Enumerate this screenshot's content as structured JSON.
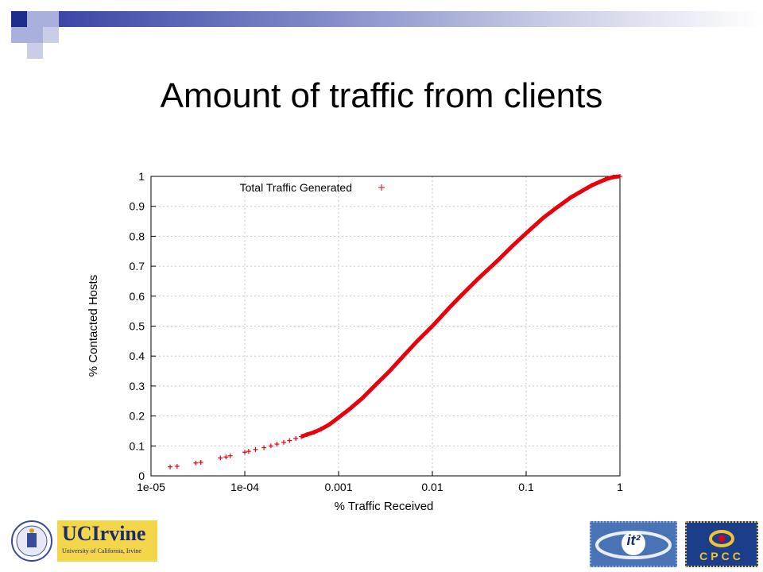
{
  "slide": {
    "title": "Amount of traffic from clients"
  },
  "logos": {
    "ucirvine_wordmark": "UCIrvine",
    "ucirvine_subtitle": "University of California, Irvine",
    "it2_text": "it²",
    "cpcc_text": "CPCC"
  },
  "colors": {
    "header_dark": "#1f2d8a",
    "header_light": "#aab0dc",
    "series": "#e8000b"
  },
  "chart_data": {
    "type": "scatter",
    "title": "",
    "xlabel": "% Traffic Received",
    "ylabel": "% Contacted Hosts",
    "x_scale": "log",
    "xlim": [
      1e-05,
      1
    ],
    "ylim": [
      0,
      1
    ],
    "x_ticks": [
      "1e-05",
      "1e-04",
      "0.001",
      "0.01",
      "0.1",
      "1"
    ],
    "y_ticks": [
      "0",
      "0.1",
      "0.2",
      "0.3",
      "0.4",
      "0.5",
      "0.6",
      "0.7",
      "0.8",
      "0.9",
      "1"
    ],
    "grid": true,
    "legend": "top-left",
    "series": [
      {
        "name": "Total Traffic Generated",
        "marker": "+",
        "points": [
          [
            1.6e-05,
            0.03
          ],
          [
            1.9e-05,
            0.032
          ],
          [
            3e-05,
            0.043
          ],
          [
            3.4e-05,
            0.045
          ],
          [
            5.5e-05,
            0.06
          ],
          [
            6.3e-05,
            0.063
          ],
          [
            7e-05,
            0.067
          ],
          [
            0.0001,
            0.079
          ],
          [
            0.00011,
            0.082
          ],
          [
            0.00013,
            0.088
          ],
          [
            0.00016,
            0.094
          ],
          [
            0.00019,
            0.1
          ],
          [
            0.00022,
            0.106
          ],
          [
            0.00026,
            0.112
          ],
          [
            0.0003,
            0.118
          ],
          [
            0.00035,
            0.125
          ],
          [
            0.0004,
            0.131
          ],
          [
            0.00046,
            0.138
          ],
          [
            0.00055,
            0.146
          ],
          [
            0.00065,
            0.156
          ],
          [
            0.0008,
            0.172
          ],
          [
            0.001,
            0.195
          ],
          [
            0.0013,
            0.222
          ],
          [
            0.0018,
            0.26
          ],
          [
            0.0025,
            0.305
          ],
          [
            0.0035,
            0.35
          ],
          [
            0.005,
            0.403
          ],
          [
            0.007,
            0.452
          ],
          [
            0.01,
            0.5
          ],
          [
            0.015,
            0.56
          ],
          [
            0.02,
            0.6
          ],
          [
            0.03,
            0.655
          ],
          [
            0.05,
            0.72
          ],
          [
            0.07,
            0.765
          ],
          [
            0.1,
            0.81
          ],
          [
            0.15,
            0.86
          ],
          [
            0.2,
            0.89
          ],
          [
            0.3,
            0.93
          ],
          [
            0.5,
            0.97
          ],
          [
            0.7,
            0.99
          ],
          [
            0.85,
            0.998
          ],
          [
            1.0,
            1.0
          ]
        ]
      }
    ]
  }
}
